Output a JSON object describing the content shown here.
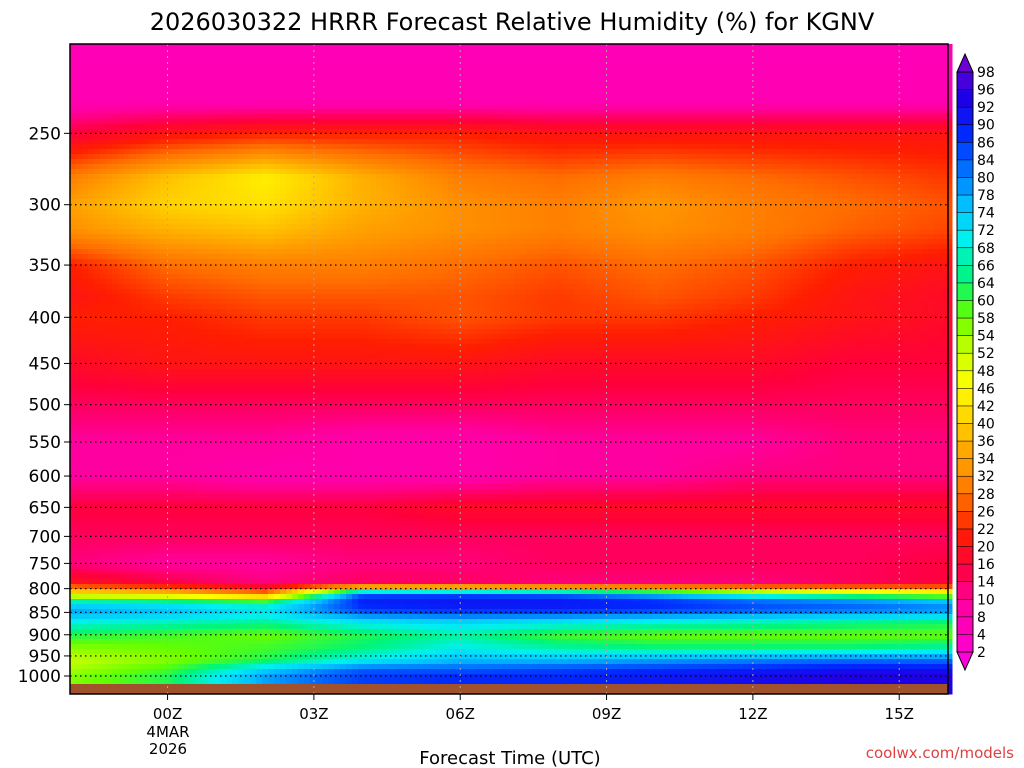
{
  "chart_data": {
    "type": "heatmap",
    "title": "2026030322 HRRR Forecast Relative Humidity (%) for KGNV",
    "xlabel": "Forecast Time (UTC)",
    "ylabel": "",
    "x_ticks": [
      "00Z",
      "03Z",
      "06Z",
      "09Z",
      "12Z",
      "15Z"
    ],
    "x_tick_hours": [
      0,
      3,
      6,
      9,
      12,
      15
    ],
    "xlim_hours": [
      -2,
      16
    ],
    "date_label": [
      "4MAR",
      "2026"
    ],
    "y_scale": "log-pressure",
    "y_ticks": [
      250,
      300,
      350,
      400,
      450,
      500,
      550,
      600,
      650,
      700,
      750,
      800,
      850,
      900,
      950,
      1000
    ],
    "ylim_hPa": [
      200,
      1000
    ],
    "grid": "dotted",
    "colorbar": {
      "levels": [
        2,
        4,
        8,
        10,
        14,
        16,
        20,
        22,
        26,
        28,
        32,
        34,
        36,
        40,
        42,
        46,
        48,
        52,
        54,
        58,
        60,
        64,
        66,
        68,
        72,
        74,
        78,
        80,
        84,
        86,
        90,
        92,
        96,
        98
      ],
      "placement": "right"
    },
    "rh_profile_hours": [
      -2,
      0,
      2,
      4,
      6,
      8,
      10,
      12,
      14,
      16
    ],
    "rh_profile_levels": [
      200,
      230,
      250,
      280,
      300,
      320,
      350,
      380,
      400,
      450,
      500,
      550,
      600,
      650,
      700,
      750,
      790,
      810,
      830,
      850,
      870,
      900,
      930,
      960,
      985,
      1000
    ],
    "rh_profiles": [
      [
        6,
        6,
        6,
        6,
        6,
        6,
        6,
        6,
        6,
        6
      ],
      [
        7,
        7,
        7,
        7,
        7,
        7,
        7,
        7,
        7,
        7
      ],
      [
        16,
        20,
        22,
        22,
        22,
        20,
        20,
        20,
        20,
        20
      ],
      [
        30,
        38,
        44,
        36,
        30,
        28,
        30,
        28,
        26,
        24
      ],
      [
        34,
        40,
        42,
        36,
        32,
        30,
        33,
        30,
        28,
        26
      ],
      [
        32,
        36,
        38,
        34,
        32,
        30,
        32,
        30,
        27,
        25
      ],
      [
        22,
        28,
        30,
        30,
        28,
        26,
        28,
        26,
        22,
        20
      ],
      [
        20,
        24,
        26,
        26,
        26,
        24,
        26,
        24,
        20,
        18
      ],
      [
        22,
        22,
        24,
        24,
        26,
        24,
        24,
        22,
        20,
        18
      ],
      [
        18,
        20,
        20,
        20,
        20,
        18,
        18,
        18,
        16,
        16
      ],
      [
        14,
        14,
        14,
        14,
        14,
        14,
        14,
        14,
        14,
        14
      ],
      [
        10,
        10,
        10,
        8,
        8,
        10,
        10,
        10,
        12,
        12
      ],
      [
        10,
        10,
        8,
        8,
        8,
        10,
        10,
        12,
        12,
        12
      ],
      [
        16,
        16,
        16,
        16,
        18,
        18,
        18,
        18,
        18,
        18
      ],
      [
        14,
        14,
        14,
        14,
        14,
        14,
        14,
        14,
        14,
        14
      ],
      [
        12,
        10,
        10,
        12,
        12,
        14,
        14,
        14,
        14,
        16
      ],
      [
        20,
        16,
        12,
        14,
        14,
        12,
        12,
        12,
        14,
        16
      ],
      [
        44,
        40,
        30,
        84,
        84,
        82,
        74,
        64,
        56,
        50
      ],
      [
        72,
        70,
        66,
        90,
        92,
        92,
        90,
        86,
        84,
        80
      ],
      [
        78,
        76,
        72,
        84,
        86,
        86,
        84,
        82,
        80,
        78
      ],
      [
        70,
        68,
        66,
        72,
        74,
        72,
        70,
        68,
        66,
        64
      ],
      [
        62,
        60,
        58,
        62,
        66,
        60,
        58,
        58,
        58,
        58
      ],
      [
        56,
        58,
        60,
        64,
        70,
        66,
        64,
        64,
        64,
        66
      ],
      [
        52,
        56,
        62,
        70,
        76,
        76,
        78,
        80,
        82,
        82
      ],
      [
        54,
        60,
        74,
        84,
        84,
        86,
        88,
        90,
        92,
        92
      ],
      [
        56,
        62,
        78,
        86,
        88,
        88,
        90,
        92,
        94,
        94
      ]
    ]
  },
  "footer": {
    "credit": "coolwx.com/models"
  }
}
